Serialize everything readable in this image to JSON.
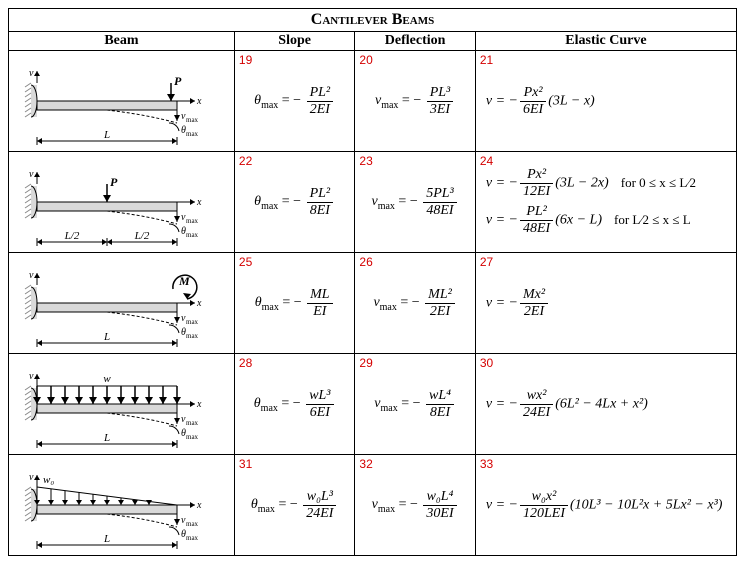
{
  "title": "Cantilever Beams",
  "headers": {
    "beam": "Beam",
    "slope": "Slope",
    "deflection": "Deflection",
    "curve": "Elastic Curve"
  },
  "col_widths": {
    "beam": 225,
    "slope": 120,
    "deflection": 120,
    "curve": 260
  },
  "colors": {
    "border": "#000000",
    "cell_number": "#d40000",
    "beam_fill": "#d9d9d9",
    "beam_stroke": "#000000",
    "wall_hatch": "#888888"
  },
  "rows": [
    {
      "id": 1,
      "diagram": "end_point",
      "num_slope": "19",
      "num_defl": "20",
      "num_curve": "21",
      "slope_num": "PL²",
      "slope_den": "2EI",
      "defl_num": "PL³",
      "defl_den": "3EI",
      "curves": [
        {
          "pre": "v = −",
          "num": "Px²",
          "den": "6EI",
          "post": "(3L − x)"
        }
      ]
    },
    {
      "id": 2,
      "diagram": "mid_point",
      "num_slope": "22",
      "num_defl": "23",
      "num_curve": "24",
      "slope_num": "PL²",
      "slope_den": "8EI",
      "defl_num": "5PL³",
      "defl_den": "48EI",
      "curves": [
        {
          "pre": "v = −",
          "num": "Px²",
          "den": "12EI",
          "post": "(3L − 2x)",
          "cond": "for 0 ≤ x ≤ L⁄2"
        },
        {
          "pre": "v = −",
          "num": "PL²",
          "den": "48EI",
          "post": "(6x − L)",
          "cond": "for L⁄2 ≤ x ≤ L"
        }
      ]
    },
    {
      "id": 3,
      "diagram": "end_moment",
      "num_slope": "25",
      "num_defl": "26",
      "num_curve": "27",
      "slope_num": "ML",
      "slope_den": "EI",
      "defl_num": "ML²",
      "defl_den": "2EI",
      "curves": [
        {
          "pre": "v = −",
          "num": "Mx²",
          "den": "2EI",
          "post": ""
        }
      ]
    },
    {
      "id": 4,
      "diagram": "uniform",
      "num_slope": "28",
      "num_defl": "29",
      "num_curve": "30",
      "slope_num": "wL³",
      "slope_den": "6EI",
      "defl_num": "wL⁴",
      "defl_den": "8EI",
      "curves": [
        {
          "pre": "v = −",
          "num": "wx²",
          "den": "24EI",
          "post": "(6L² − 4Lx + x²)"
        }
      ]
    },
    {
      "id": 5,
      "diagram": "triangular",
      "num_slope": "31",
      "num_defl": "32",
      "num_curve": "33",
      "slope_num": "w₀L³",
      "slope_den": "24EI",
      "defl_num": "w₀L⁴",
      "defl_den": "30EI",
      "curves": [
        {
          "pre": "v = −",
          "num": "w₀x²",
          "den": "120LEI",
          "post": "(10L³ − 10L²x + 5Lx² − x³)"
        }
      ]
    }
  ],
  "labels": {
    "theta": "θ",
    "max": "max",
    "nu": "ν",
    "P": "P",
    "M": "M",
    "w": "w",
    "w0": "w₀",
    "L": "L",
    "Lh": "L/2",
    "x": "x",
    "v": "v"
  }
}
